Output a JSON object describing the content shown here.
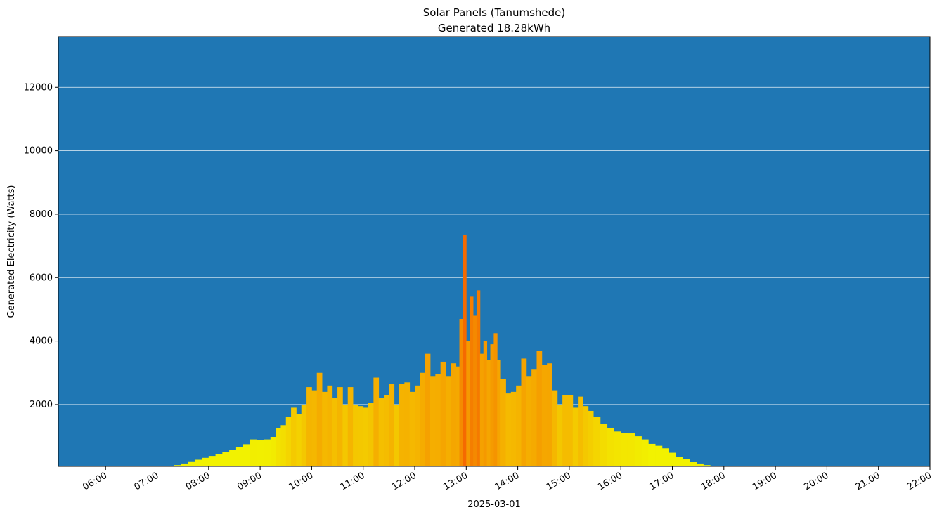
{
  "chart_data": {
    "type": "bar",
    "title": "Solar Panels (Tanumshede)",
    "subtitle": "Generated 18.28kWh",
    "xlabel": "2025-03-01",
    "ylabel": "Generated Electricity (Watts)",
    "xlim_hours": [
      5.083,
      22.0
    ],
    "ylim": [
      50,
      13600
    ],
    "x_tick_labels": [
      "06:00",
      "07:00",
      "08:00",
      "09:00",
      "10:00",
      "11:00",
      "12:00",
      "13:00",
      "14:00",
      "15:00",
      "16:00",
      "17:00",
      "18:00",
      "19:00",
      "20:00",
      "21:00",
      "22:00"
    ],
    "y_ticks": [
      2000,
      4000,
      6000,
      8000,
      10000,
      12000
    ],
    "y_tick_labels": [
      "2000",
      "4000",
      "6000",
      "8000",
      "10000",
      "12000"
    ],
    "grid": "y",
    "colors": {
      "background": "#1f77b4",
      "grid": "#ffffff",
      "low": "#f2f200",
      "mid": "#f5b800",
      "high": "#f56a00"
    },
    "series": [
      {
        "points": [
          [
            "07:12",
            60
          ],
          [
            "07:20",
            90
          ],
          [
            "07:28",
            140
          ],
          [
            "07:36",
            210
          ],
          [
            "07:44",
            260
          ],
          [
            "07:52",
            320
          ],
          [
            "08:00",
            380
          ],
          [
            "08:08",
            440
          ],
          [
            "08:16",
            500
          ],
          [
            "08:24",
            580
          ],
          [
            "08:32",
            650
          ],
          [
            "08:40",
            750
          ],
          [
            "08:48",
            900
          ],
          [
            "08:56",
            870
          ],
          [
            "09:04",
            900
          ],
          [
            "09:12",
            980
          ],
          [
            "09:18",
            1250
          ],
          [
            "09:24",
            1350
          ],
          [
            "09:30",
            1600
          ],
          [
            "09:36",
            1900
          ],
          [
            "09:42",
            1700
          ],
          [
            "09:48",
            2000
          ],
          [
            "09:54",
            2550
          ],
          [
            "10:00",
            2450
          ],
          [
            "10:06",
            3000
          ],
          [
            "10:12",
            2400
          ],
          [
            "10:18",
            2600
          ],
          [
            "10:24",
            2200
          ],
          [
            "10:30",
            2550
          ],
          [
            "10:36",
            2000
          ],
          [
            "10:42",
            2550
          ],
          [
            "10:48",
            2000
          ],
          [
            "10:54",
            1950
          ],
          [
            "11:00",
            1900
          ],
          [
            "11:06",
            2050
          ],
          [
            "11:12",
            2850
          ],
          [
            "11:18",
            2200
          ],
          [
            "11:24",
            2300
          ],
          [
            "11:30",
            2650
          ],
          [
            "11:36",
            2000
          ],
          [
            "11:42",
            2650
          ],
          [
            "11:48",
            2700
          ],
          [
            "11:54",
            2400
          ],
          [
            "12:00",
            2600
          ],
          [
            "12:06",
            3000
          ],
          [
            "12:12",
            3600
          ],
          [
            "12:18",
            2900
          ],
          [
            "12:24",
            2950
          ],
          [
            "12:30",
            3350
          ],
          [
            "12:36",
            2900
          ],
          [
            "12:42",
            3300
          ],
          [
            "12:48",
            3200
          ],
          [
            "12:52",
            4700
          ],
          [
            "12:56",
            7350
          ],
          [
            "13:00",
            4000
          ],
          [
            "13:04",
            5400
          ],
          [
            "13:08",
            4800
          ],
          [
            "13:12",
            5600
          ],
          [
            "13:16",
            3600
          ],
          [
            "13:20",
            4000
          ],
          [
            "13:24",
            3400
          ],
          [
            "13:28",
            3900
          ],
          [
            "13:32",
            4250
          ],
          [
            "13:36",
            3400
          ],
          [
            "13:40",
            2800
          ],
          [
            "13:46",
            2350
          ],
          [
            "13:52",
            2400
          ],
          [
            "13:58",
            2600
          ],
          [
            "14:04",
            3450
          ],
          [
            "14:10",
            2900
          ],
          [
            "14:16",
            3100
          ],
          [
            "14:22",
            3700
          ],
          [
            "14:28",
            3250
          ],
          [
            "14:34",
            3300
          ],
          [
            "14:40",
            2450
          ],
          [
            "14:46",
            2000
          ],
          [
            "14:52",
            2300
          ],
          [
            "14:58",
            2300
          ],
          [
            "15:04",
            1900
          ],
          [
            "15:10",
            2250
          ],
          [
            "15:16",
            1950
          ],
          [
            "15:22",
            1800
          ],
          [
            "15:28",
            1600
          ],
          [
            "15:36",
            1400
          ],
          [
            "15:44",
            1250
          ],
          [
            "15:52",
            1150
          ],
          [
            "16:00",
            1100
          ],
          [
            "16:08",
            1090
          ],
          [
            "16:16",
            1000
          ],
          [
            "16:24",
            900
          ],
          [
            "16:32",
            760
          ],
          [
            "16:40",
            700
          ],
          [
            "16:48",
            620
          ],
          [
            "16:56",
            480
          ],
          [
            "17:04",
            350
          ],
          [
            "17:12",
            280
          ],
          [
            "17:20",
            200
          ],
          [
            "17:28",
            140
          ],
          [
            "17:36",
            90
          ],
          [
            "17:44",
            65
          ],
          [
            "17:52",
            60
          ]
        ]
      }
    ]
  }
}
